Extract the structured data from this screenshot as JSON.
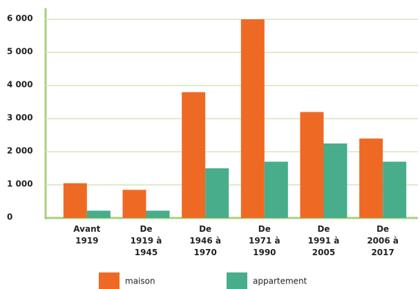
{
  "chart_data": {
    "type": "bar",
    "categories": [
      "Avant\n1919",
      "De\n1919 à\n1945",
      "De\n1946 à\n1970",
      "De\n1971 à\n1990",
      "De\n1991 à\n2005",
      "De\n2006 à\n2017"
    ],
    "series": [
      {
        "name": "maison",
        "color": "#ee6a24",
        "values": [
          1050,
          850,
          3800,
          6000,
          3200,
          2400
        ]
      },
      {
        "name": "appartement",
        "color": "#47ad8a",
        "values": [
          220,
          220,
          1500,
          1700,
          2250,
          1700
        ]
      }
    ],
    "ylim": [
      0,
      6000
    ],
    "yticks": [
      0,
      {
        "value": 1000,
        "label": "1 000"
      },
      {
        "value": 2000,
        "label": "2 000"
      },
      {
        "value": 3000,
        "label": "3 000"
      },
      {
        "value": 4000,
        "label": "4 000"
      },
      {
        "value": 5000,
        "label": "5 000"
      },
      {
        "value": 6000,
        "label": "6 000"
      }
    ],
    "grid": true
  }
}
